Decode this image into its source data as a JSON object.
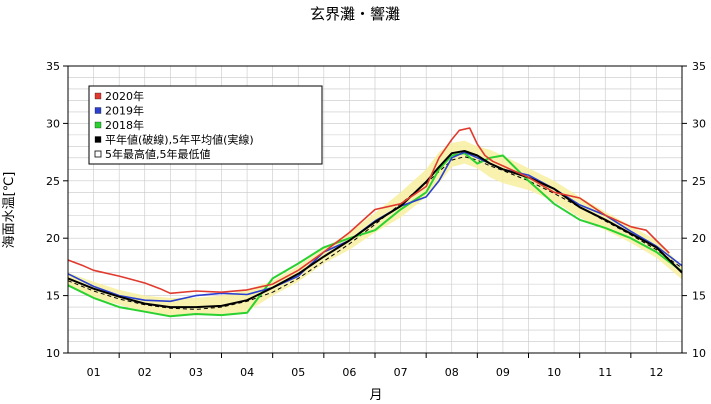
{
  "chart_data": {
    "type": "line",
    "title": "玄界灘・響灘",
    "ylabel": "海面水温[℃]",
    "xlabel": "月",
    "ylim": [
      10,
      35
    ],
    "yticks": [
      10,
      15,
      20,
      25,
      30,
      35
    ],
    "xlim": [
      0,
      12
    ],
    "month_labels": [
      "01",
      "02",
      "03",
      "04",
      "05",
      "06",
      "07",
      "08",
      "09",
      "10",
      "11",
      "12"
    ],
    "grid": true,
    "legend_position": "top-left",
    "legend": [
      {
        "label": "2020年",
        "swatch": "#e03a2f",
        "style": "filled"
      },
      {
        "label": "2019年",
        "swatch": "#2b3fd0",
        "style": "filled"
      },
      {
        "label": "2018年",
        "swatch": "#2ad130",
        "style": "filled"
      },
      {
        "label": "平年値(破線),5年平均値(実線)",
        "swatch": "#000000",
        "style": "filled"
      },
      {
        "label": "5年最高値,5年最低値",
        "swatch": "#ffffff",
        "style": "outline"
      }
    ],
    "colors": {
      "y2020": "#e03a2f",
      "y2019": "#2b3fd0",
      "y2018": "#2ad130",
      "band": "#f7f0a0",
      "grid": "#c8c8c8"
    },
    "x": [
      0,
      0.5,
      1,
      1.5,
      2,
      2.5,
      3,
      3.5,
      4,
      4.5,
      5,
      5.5,
      6,
      6.5,
      7,
      7.25,
      7.5,
      7.75,
      8,
      8.25,
      8.5,
      9,
      9.5,
      10,
      10.5,
      11,
      11.5,
      12
    ],
    "series": [
      {
        "name": "2020年",
        "key": "y2020",
        "x": [
          0,
          0.3,
          0.5,
          1.0,
          1.5,
          1.8,
          2.0,
          2.5,
          3.0,
          3.5,
          4.0,
          4.5,
          5.0,
          5.5,
          6.0,
          6.5,
          7.0,
          7.25,
          7.5,
          7.65,
          7.85,
          8.0,
          8.15,
          8.3,
          8.5,
          9.0,
          9.5,
          10.0,
          10.5,
          11.0,
          11.3,
          11.5,
          11.75
        ],
        "values": [
          18.1,
          17.6,
          17.2,
          16.7,
          16.1,
          15.6,
          15.2,
          15.4,
          15.3,
          15.5,
          16.0,
          17.2,
          18.8,
          20.5,
          22.5,
          23.0,
          24.5,
          27.0,
          28.6,
          29.4,
          29.6,
          28.2,
          27.2,
          26.7,
          26.3,
          25.3,
          24.0,
          23.5,
          22.0,
          21.0,
          20.7,
          19.8,
          18.7
        ]
      },
      {
        "name": "2019年",
        "key": "y2019",
        "x": [
          0,
          0.5,
          1,
          1.5,
          2,
          2.5,
          3,
          3.5,
          4,
          4.5,
          5,
          5.5,
          6,
          6.5,
          7,
          7.25,
          7.5,
          7.75,
          8,
          8.25,
          8.5,
          9,
          9.5,
          10,
          10.5,
          11,
          11.5,
          12
        ],
        "values": [
          16.9,
          15.8,
          15.0,
          14.6,
          14.5,
          15.0,
          15.2,
          15.1,
          15.7,
          16.7,
          18.8,
          19.8,
          21.5,
          22.8,
          23.6,
          25.0,
          27.0,
          27.5,
          27.0,
          26.5,
          26.0,
          25.5,
          24.3,
          22.9,
          22.0,
          20.6,
          19.3,
          17.6
        ]
      },
      {
        "name": "2018年",
        "key": "y2018",
        "x": [
          0,
          0.5,
          1,
          1.5,
          2,
          2.5,
          3,
          3.5,
          4,
          4.5,
          5,
          5.5,
          6,
          6.5,
          7,
          7.25,
          7.5,
          7.75,
          8,
          8.25,
          8.5,
          9,
          9.5,
          10,
          10.5,
          11,
          11.5,
          12
        ],
        "values": [
          15.9,
          14.8,
          14.0,
          13.6,
          13.2,
          13.4,
          13.3,
          13.5,
          16.5,
          17.8,
          19.2,
          20.0,
          20.7,
          22.5,
          24.0,
          26.0,
          27.2,
          27.4,
          26.5,
          27.0,
          27.2,
          25.0,
          23.0,
          21.6,
          20.9,
          20.0,
          18.8,
          17.1
        ]
      },
      {
        "name": "平年値",
        "key": "normal",
        "x": [
          0,
          0.5,
          1,
          1.5,
          2,
          2.5,
          3,
          3.5,
          4,
          4.5,
          5,
          5.5,
          6,
          6.5,
          7,
          7.25,
          7.5,
          7.75,
          8,
          8.25,
          8.5,
          9,
          9.5,
          10,
          10.5,
          11,
          11.5,
          12
        ],
        "values": [
          16.3,
          15.4,
          14.7,
          14.2,
          13.9,
          13.8,
          14.0,
          14.5,
          15.3,
          16.5,
          18.0,
          19.5,
          21.2,
          23.0,
          24.8,
          25.8,
          26.8,
          27.1,
          26.8,
          26.3,
          25.9,
          25.0,
          23.9,
          22.7,
          21.5,
          20.3,
          19.0,
          17.4
        ]
      },
      {
        "name": "5年平均値",
        "key": "avg5",
        "x": [
          0,
          0.5,
          1,
          1.5,
          2,
          2.5,
          3,
          3.5,
          4,
          4.5,
          5,
          5.5,
          6,
          6.5,
          7,
          7.25,
          7.5,
          7.75,
          8,
          8.25,
          8.5,
          9,
          9.5,
          10,
          10.5,
          11,
          11.5,
          12
        ],
        "values": [
          16.5,
          15.6,
          14.9,
          14.3,
          14.0,
          14.0,
          14.1,
          14.6,
          15.7,
          16.9,
          18.4,
          19.8,
          21.4,
          22.8,
          24.9,
          26.2,
          27.4,
          27.6,
          27.2,
          26.5,
          26.0,
          25.3,
          24.3,
          22.7,
          21.6,
          20.4,
          19.2,
          17.0
        ]
      },
      {
        "name": "5年最高値",
        "key": "max5",
        "x": [
          0,
          0.5,
          1,
          1.5,
          2,
          2.5,
          3,
          3.5,
          4,
          4.5,
          5,
          5.5,
          6,
          6.5,
          7,
          7.25,
          7.5,
          7.75,
          8,
          8.25,
          8.5,
          9,
          9.5,
          10,
          10.5,
          11,
          11.5,
          12
        ],
        "values": [
          17.0,
          16.2,
          15.5,
          15.0,
          14.8,
          14.8,
          15.0,
          15.5,
          16.3,
          17.6,
          19.1,
          20.5,
          22.2,
          24.0,
          26.0,
          27.5,
          28.3,
          28.5,
          28.0,
          27.7,
          27.2,
          26.1,
          25.0,
          23.6,
          22.3,
          21.1,
          19.8,
          17.6
        ]
      },
      {
        "name": "5年最低値",
        "key": "min5",
        "x": [
          0,
          0.5,
          1,
          1.5,
          2,
          2.5,
          3,
          3.5,
          4,
          4.5,
          5,
          5.5,
          6,
          6.5,
          7,
          7.25,
          7.5,
          7.75,
          8,
          8.25,
          8.5,
          9,
          9.5,
          10,
          10.5,
          11,
          11.5,
          12
        ],
        "values": [
          15.9,
          14.8,
          14.2,
          13.6,
          13.2,
          13.3,
          13.3,
          13.6,
          15.0,
          16.2,
          17.8,
          19.0,
          20.5,
          21.8,
          23.6,
          24.8,
          26.2,
          26.5,
          26.1,
          25.3,
          24.8,
          24.2,
          23.2,
          21.8,
          20.7,
          19.6,
          18.3,
          16.4
        ]
      }
    ]
  }
}
